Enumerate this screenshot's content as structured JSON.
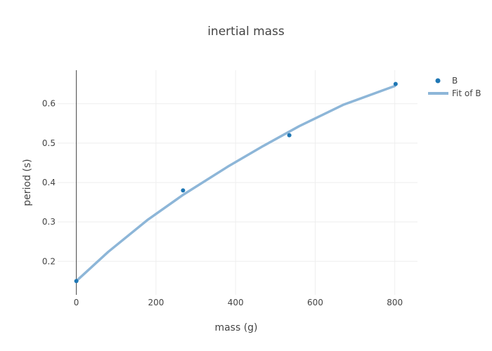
{
  "chart_data": {
    "type": "scatter",
    "title": "inertial mass",
    "xlabel": "mass (g)",
    "ylabel": "period (s)",
    "xlim": [
      -47,
      857
    ],
    "ylim": [
      0.115,
      0.685
    ],
    "x_ticks": [
      0,
      200,
      400,
      600,
      800
    ],
    "y_ticks": [
      0.2,
      0.3,
      0.4,
      0.5,
      0.6
    ],
    "x_tick_labels": [
      "0",
      "200",
      "400",
      "600",
      "800"
    ],
    "y_tick_labels": [
      "0.2",
      "0.3",
      "0.4",
      "0.5",
      "0.6"
    ],
    "grid": true,
    "legend_position": "top-right",
    "series": [
      {
        "name": "B",
        "mode": "markers",
        "color": "#1f77b4",
        "x": [
          0,
          268,
          535,
          802
        ],
        "y": [
          0.15,
          0.38,
          0.52,
          0.65
        ]
      },
      {
        "name": "Fit of B",
        "mode": "line",
        "color": "#8db6d8",
        "x": [
          0,
          80,
          180,
          270,
          380,
          470,
          560,
          670,
          800
        ],
        "y": [
          0.15,
          0.224,
          0.306,
          0.37,
          0.44,
          0.493,
          0.543,
          0.597,
          0.645
        ]
      }
    ]
  }
}
